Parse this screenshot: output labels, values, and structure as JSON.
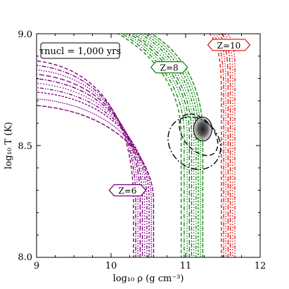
{
  "chart_data": {
    "type": "line",
    "xlabel": "log₁₀ ρ  (g cm⁻³)",
    "ylabel": "log₁₀ T  (K)",
    "xlim": [
      9,
      12
    ],
    "ylim": [
      8.0,
      9.0
    ],
    "x_ticks": [
      "9",
      "10",
      "11",
      "12"
    ],
    "y_ticks": [
      "8.0",
      "8.5",
      "9.0"
    ],
    "annotation": "τnucl = 1,000 yrs",
    "colors": {
      "z6": "#800080",
      "z8": "#1a8a1a",
      "z10": "#e02020",
      "confidence": "#000000"
    },
    "series": [
      {
        "name": "Z=6",
        "color": "#800080",
        "label_x": 10.22,
        "label_y": 8.3,
        "curves": [
          {
            "rho0": 10.3,
            "y_top": 8.88
          },
          {
            "rho0": 10.33,
            "y_top": 8.86
          },
          {
            "rho0": 10.36,
            "y_top": 8.84
          },
          {
            "rho0": 10.39,
            "y_top": 8.82
          },
          {
            "rho0": 10.42,
            "y_top": 8.8
          },
          {
            "rho0": 10.45,
            "y_top": 8.78
          },
          {
            "rho0": 10.48,
            "y_top": 8.76
          },
          {
            "rho0": 10.51,
            "y_top": 8.74
          },
          {
            "rho0": 10.54,
            "y_top": 8.71
          },
          {
            "rho0": 10.57,
            "y_top": 8.68
          }
        ]
      },
      {
        "name": "Z=8",
        "color": "#1a8a1a",
        "label_x": 10.78,
        "label_y": 8.85,
        "curves": [
          {
            "rho0": 10.94,
            "x_top": 10.02
          },
          {
            "rho0": 10.98,
            "x_top": 10.07
          },
          {
            "rho0": 11.02,
            "x_top": 10.12
          },
          {
            "rho0": 11.05,
            "x_top": 10.17
          },
          {
            "rho0": 11.08,
            "x_top": 10.22
          },
          {
            "rho0": 11.11,
            "x_top": 10.27
          },
          {
            "rho0": 11.14,
            "x_top": 10.32
          },
          {
            "rho0": 11.17,
            "x_top": 10.37
          },
          {
            "rho0": 11.2,
            "x_top": 10.42
          },
          {
            "rho0": 11.23,
            "x_top": 10.47
          }
        ]
      },
      {
        "name": "Z=10",
        "color": "#e02020",
        "label_x": 11.58,
        "label_y": 8.95,
        "curves": [
          {
            "rho0": 11.48,
            "x_top": 11.28
          },
          {
            "rho0": 11.51,
            "x_top": 11.32
          },
          {
            "rho0": 11.54,
            "x_top": 11.36
          },
          {
            "rho0": 11.57,
            "x_top": 11.4
          },
          {
            "rho0": 11.6,
            "x_top": 11.44
          },
          {
            "rho0": 11.63,
            "x_top": 11.48
          },
          {
            "rho0": 11.66,
            "x_top": 11.52
          }
        ]
      }
    ],
    "confidence_center": {
      "x": 11.23,
      "y": 8.58
    },
    "confidence_contours": [
      {
        "level": "inner",
        "dash": "solid",
        "rx": 0.06,
        "ry": 0.07
      },
      {
        "level": "mid",
        "dash": "dashed",
        "rx": 0.2,
        "ry": 0.12
      },
      {
        "level": "outer",
        "dash": "dashdot",
        "rx": 0.32,
        "ry": 0.17
      }
    ]
  }
}
